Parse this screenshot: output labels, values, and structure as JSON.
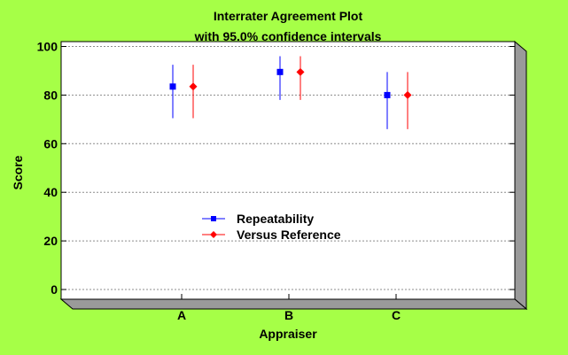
{
  "chart_data": {
    "type": "scatter",
    "title": "Interrater Agreement Plot",
    "subtitle": "with 95.0% confidence intervals",
    "xlabel": "Appraiser",
    "ylabel": "Score",
    "categories": [
      "A",
      "B",
      "C"
    ],
    "ylim": [
      -4,
      102
    ],
    "yticks": [
      0,
      20,
      40,
      60,
      80,
      100
    ],
    "grid": true,
    "legend_position": "center-left",
    "series": [
      {
        "name": "Repeatability",
        "color": "#0000FF",
        "marker": "square",
        "values": [
          83.5,
          89.5,
          80.0
        ],
        "lower": [
          70.5,
          78.0,
          66.0
        ],
        "upper": [
          92.5,
          96.0,
          89.5
        ]
      },
      {
        "name": "Versus Reference",
        "color": "#FF0000",
        "marker": "diamond",
        "values": [
          83.5,
          89.5,
          80.0
        ],
        "lower": [
          70.5,
          78.0,
          66.0
        ],
        "upper": [
          92.5,
          96.0,
          89.5
        ]
      }
    ]
  }
}
